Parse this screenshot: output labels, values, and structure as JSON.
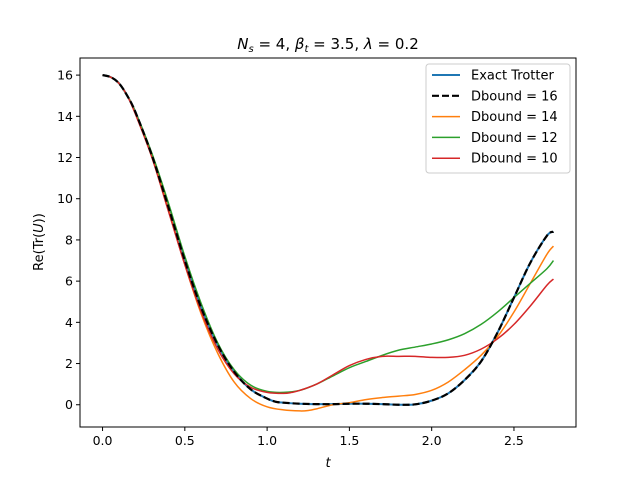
{
  "chart_data": {
    "type": "line",
    "title": "N_s = 4, β_t = 3.5, λ = 0.2",
    "title_parts": {
      "n": "N",
      "n_sub": "s",
      "n_val": " = 4, ",
      "beta": "β",
      "beta_sub": "t",
      "beta_val": " = 3.5, ",
      "lambda": "λ",
      "lambda_val": " = 0.2"
    },
    "xlabel": "t",
    "ylabel": "Re(Tr(U))",
    "ylabel_parts": {
      "pre": "Re(Tr(",
      "var": "U",
      "post": "))"
    },
    "xlim": [
      -0.137,
      2.877
    ],
    "ylim": [
      -1.08,
      16.83
    ],
    "xticks": [
      0.0,
      0.5,
      1.0,
      1.5,
      2.0,
      2.5
    ],
    "xtick_labels": [
      "0.0",
      "0.5",
      "1.0",
      "1.5",
      "2.0",
      "2.5"
    ],
    "yticks": [
      0,
      2,
      4,
      6,
      8,
      10,
      12,
      14,
      16
    ],
    "ytick_labels": [
      "0",
      "2",
      "4",
      "6",
      "8",
      "10",
      "12",
      "14",
      "16"
    ],
    "legend_position": "upper right",
    "series": [
      {
        "name": "Exact Trotter",
        "color": "#1f77b4",
        "style": "solid",
        "width": 2,
        "x": [
          0,
          0.05,
          0.1,
          0.15,
          0.2,
          0.3,
          0.4,
          0.5,
          0.6,
          0.7,
          0.8,
          0.9,
          1.0,
          1.05,
          1.1,
          1.2,
          1.3,
          1.4,
          1.5,
          1.6,
          1.7,
          1.8,
          1.9,
          2.0,
          2.1,
          2.2,
          2.3,
          2.4,
          2.5,
          2.6,
          2.7,
          2.74
        ],
        "y": [
          16,
          15.9,
          15.6,
          15.0,
          14.2,
          12.1,
          9.6,
          7.0,
          4.7,
          2.9,
          1.6,
          0.75,
          0.3,
          0.15,
          0.1,
          0.05,
          0.03,
          0.03,
          0.05,
          0.05,
          0.03,
          0.0,
          0.02,
          0.2,
          0.55,
          1.2,
          2.1,
          3.5,
          5.2,
          6.9,
          8.2,
          8.4
        ]
      },
      {
        "name": "Dbound = 16",
        "color": "#000000",
        "style": "dashed",
        "width": 2.2,
        "x": [
          0,
          0.05,
          0.1,
          0.15,
          0.2,
          0.3,
          0.4,
          0.5,
          0.6,
          0.7,
          0.8,
          0.9,
          1.0,
          1.05,
          1.1,
          1.2,
          1.3,
          1.4,
          1.5,
          1.6,
          1.7,
          1.8,
          1.9,
          2.0,
          2.1,
          2.2,
          2.3,
          2.4,
          2.5,
          2.6,
          2.7,
          2.74
        ],
        "y": [
          16,
          15.9,
          15.6,
          15.0,
          14.2,
          12.1,
          9.6,
          7.0,
          4.7,
          2.9,
          1.6,
          0.75,
          0.3,
          0.15,
          0.1,
          0.05,
          0.03,
          0.03,
          0.05,
          0.05,
          0.03,
          0.0,
          0.02,
          0.2,
          0.55,
          1.2,
          2.1,
          3.5,
          5.2,
          6.9,
          8.2,
          8.4
        ]
      },
      {
        "name": "Dbound = 14",
        "color": "#ff7f0e",
        "style": "solid",
        "width": 1.5,
        "x": [
          0,
          0.05,
          0.1,
          0.15,
          0.2,
          0.3,
          0.4,
          0.5,
          0.6,
          0.7,
          0.8,
          0.9,
          1.0,
          1.1,
          1.2,
          1.25,
          1.3,
          1.4,
          1.5,
          1.6,
          1.7,
          1.8,
          1.9,
          2.0,
          2.1,
          2.2,
          2.3,
          2.4,
          2.5,
          2.6,
          2.7,
          2.74
        ],
        "y": [
          16,
          15.9,
          15.6,
          15.0,
          14.2,
          12.1,
          9.5,
          6.8,
          4.4,
          2.5,
          1.1,
          0.3,
          -0.1,
          -0.25,
          -0.3,
          -0.28,
          -0.2,
          0.0,
          0.1,
          0.25,
          0.35,
          0.42,
          0.5,
          0.7,
          1.1,
          1.7,
          2.4,
          3.3,
          4.5,
          5.9,
          7.3,
          7.7
        ]
      },
      {
        "name": "Dbound = 12",
        "color": "#2ca02c",
        "style": "solid",
        "width": 1.5,
        "x": [
          0,
          0.05,
          0.1,
          0.15,
          0.2,
          0.3,
          0.4,
          0.5,
          0.6,
          0.7,
          0.8,
          0.9,
          1.0,
          1.1,
          1.2,
          1.3,
          1.4,
          1.5,
          1.6,
          1.7,
          1.8,
          1.9,
          2.0,
          2.1,
          2.2,
          2.3,
          2.4,
          2.5,
          2.6,
          2.7,
          2.74
        ],
        "y": [
          16,
          15.9,
          15.6,
          15.0,
          14.2,
          12.2,
          9.8,
          7.2,
          4.9,
          3.0,
          1.7,
          0.95,
          0.65,
          0.6,
          0.7,
          1.0,
          1.4,
          1.8,
          2.1,
          2.4,
          2.65,
          2.8,
          2.95,
          3.15,
          3.45,
          3.9,
          4.5,
          5.2,
          5.9,
          6.6,
          7.0
        ]
      },
      {
        "name": "Dbound = 10",
        "color": "#d62728",
        "style": "solid",
        "width": 1.5,
        "x": [
          0,
          0.05,
          0.1,
          0.15,
          0.2,
          0.3,
          0.4,
          0.5,
          0.6,
          0.7,
          0.8,
          0.9,
          1.0,
          1.1,
          1.15,
          1.2,
          1.3,
          1.4,
          1.5,
          1.6,
          1.7,
          1.8,
          1.9,
          2.0,
          2.1,
          2.2,
          2.3,
          2.4,
          2.5,
          2.6,
          2.7,
          2.74
        ],
        "y": [
          16,
          15.9,
          15.6,
          15.0,
          14.1,
          12.0,
          9.4,
          6.8,
          4.5,
          2.7,
          1.5,
          0.85,
          0.6,
          0.55,
          0.6,
          0.7,
          1.0,
          1.45,
          1.9,
          2.2,
          2.35,
          2.35,
          2.35,
          2.3,
          2.3,
          2.4,
          2.7,
          3.2,
          3.9,
          4.8,
          5.8,
          6.1
        ]
      }
    ]
  }
}
